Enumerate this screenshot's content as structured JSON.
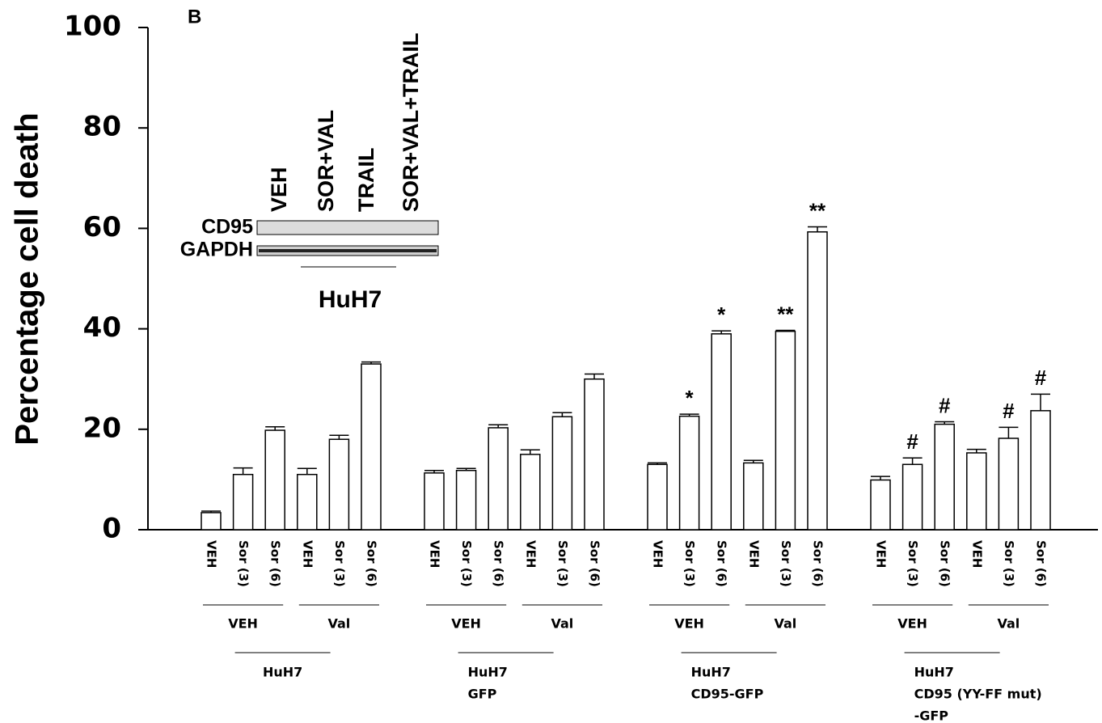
{
  "chart_data": {
    "type": "bar",
    "panel_label": "B",
    "ylabel": "Percentage cell death",
    "categories": [
      "VEH",
      "Sor (3)",
      "Sor (6)",
      "VEH",
      "Sor (3)",
      "Sor (6)",
      "VEH",
      "Sor (3)",
      "Sor (6)",
      "VEH",
      "Sor (3)",
      "Sor (6)",
      "VEH",
      "Sor (3)",
      "Sor (6)",
      "VEH",
      "Sor (3)",
      "Sor (6)",
      "VEH",
      "Sor (3)",
      "Sor (6)",
      "VEH",
      "Sor (3)",
      "Sor (6)"
    ],
    "values": [
      3.4,
      11,
      19.8,
      11,
      18,
      33,
      11.3,
      11.8,
      20.3,
      15,
      22.5,
      30,
      13,
      22.6,
      39,
      13.3,
      39.5,
      59.3,
      9.9,
      13,
      21,
      15.3,
      18.2,
      23.7
    ],
    "errors": [
      0.3,
      1.3,
      0.7,
      1.2,
      0.8,
      0.4,
      0.5,
      0.4,
      0.6,
      0.9,
      0.8,
      1,
      0.3,
      0.4,
      0.6,
      0.5,
      0.2,
      1,
      0.7,
      1.3,
      0.5,
      0.7,
      2.2,
      3.3
    ],
    "markers": [
      null,
      null,
      null,
      null,
      null,
      null,
      null,
      null,
      null,
      null,
      null,
      null,
      null,
      "*",
      "*",
      null,
      "**",
      "**",
      null,
      "#",
      "#",
      null,
      "#",
      "#"
    ],
    "subgroups": [
      "VEH",
      "Val",
      "VEH",
      "Val",
      "VEH",
      "Val",
      "VEH",
      "Val"
    ],
    "groups": [
      [
        "HuH7"
      ],
      [
        "HuH7",
        "GFP"
      ],
      [
        "HuH7",
        "CD95-GFP"
      ],
      [
        "HuH7",
        "CD95 (YY-FF mut)",
        "-GFP"
      ]
    ],
    "color": "#ffffff",
    "ylim": [
      0,
      100
    ],
    "yticks": [
      0,
      20,
      40,
      60,
      80,
      100
    ],
    "inset": {
      "lanes": [
        "VEH",
        "SOR+VAL",
        "TRAIL",
        "SOR+VAL+TRAIL"
      ],
      "bands": [
        "CD95",
        "GAPDH"
      ],
      "label": "HuH7"
    }
  }
}
